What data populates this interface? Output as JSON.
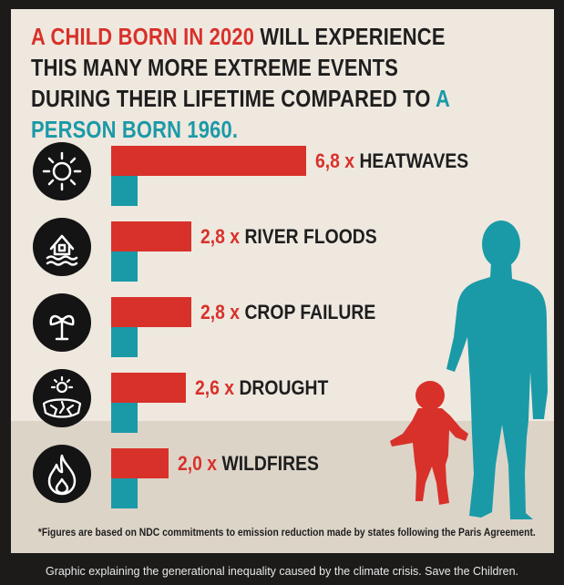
{
  "header": {
    "title_part1": "A CHILD BORN IN 2020",
    "title_part2": " WILL EXPERIENCE THIS MANY MORE EXTREME EVENTS DURING THEIR LIFETIME COMPARED TO ",
    "title_part3": "A PERSON BORN 1960."
  },
  "chart_data": {
    "type": "bar",
    "categories": [
      "HEATWAVES",
      "RIVER FLOODS",
      "CROP FAILURE",
      "DROUGHT",
      "WILDFIRES"
    ],
    "value_labels": [
      "6,8 x",
      "2,8 x",
      "2,8 x",
      "2,6 x",
      "2,0 x"
    ],
    "series": [
      {
        "values": [
          6.8,
          2.8,
          2.8,
          2.6,
          2.0
        ]
      },
      {
        "values": [
          1,
          1,
          1,
          1,
          1
        ]
      }
    ],
    "icons": [
      "sun-icon",
      "flooded-house-icon",
      "wilting-plant-icon",
      "cracked-earth-icon",
      "flame-icon"
    ],
    "colors": {
      "child": "#d8312a",
      "adult": "#1a9aa7"
    }
  },
  "footnote": "*Figures are based on NDC commitments to emission reduction made by states following the Paris Agreement.",
  "caption": "Graphic explaining the generational inequality caused by the climate crisis. Save the Children."
}
